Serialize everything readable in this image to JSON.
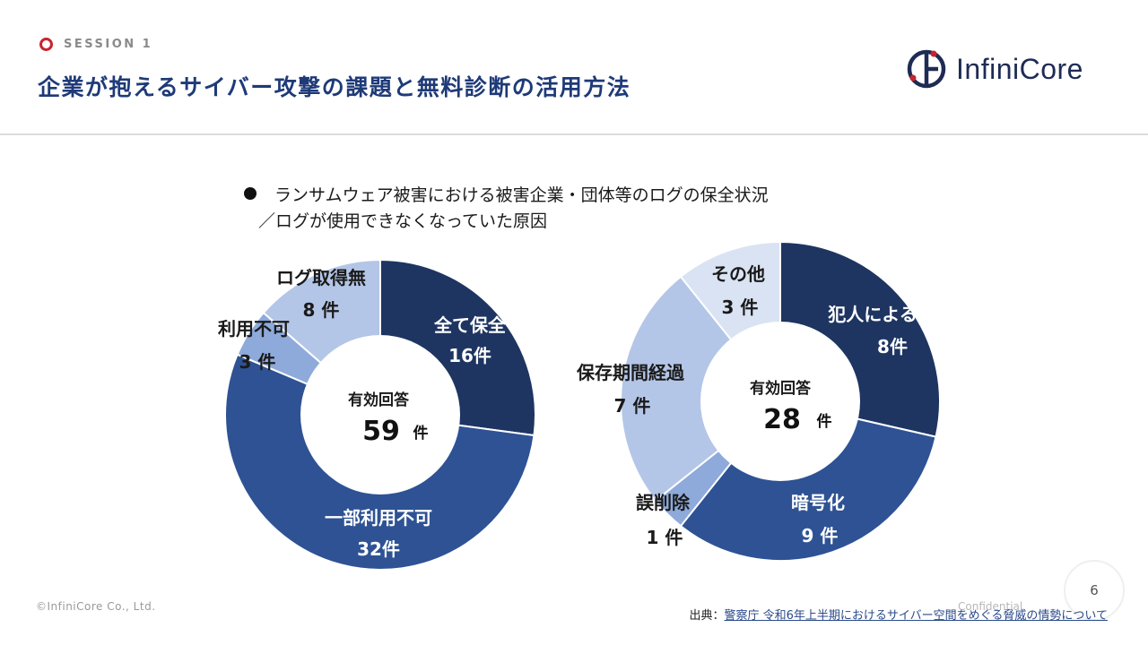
{
  "header": {
    "session_label": "SESSION 1",
    "title": "企業が抱えるサイバー攻撃の課題と無料診断の活用方法",
    "logo_text": "InfiniCore"
  },
  "subtitle": {
    "line1": "ランサムウェア被害における被害企業・団体等のログの保全状況",
    "line2": "／ログが使用できなくなっていた原因"
  },
  "chart_data": [
    {
      "type": "pie",
      "style": "donut",
      "center_caption": "有効回答",
      "total": 59,
      "unit": "件",
      "slices": [
        {
          "label": "全て保全",
          "value": 16,
          "value_text": "16件",
          "color": "#1e3562"
        },
        {
          "label": "一部利用不可",
          "value": 32,
          "value_text": "32件",
          "color": "#2e5294"
        },
        {
          "label": "利用不可",
          "value": 3,
          "value_text": "3 件",
          "color": "#8eaadb"
        },
        {
          "label": "ログ取得無",
          "value": 8,
          "value_text": "8 件",
          "color": "#b4c6e7"
        }
      ]
    },
    {
      "type": "pie",
      "style": "donut",
      "center_caption": "有効回答",
      "total": 28,
      "unit": "件",
      "slices": [
        {
          "label": "犯人による削除",
          "value": 8,
          "value_text": "8件",
          "color": "#1e3562"
        },
        {
          "label": "暗号化",
          "value": 9,
          "value_text": "9 件",
          "color": "#2e5294"
        },
        {
          "label": "誤削除",
          "value": 1,
          "value_text": "1 件",
          "color": "#8eaadb"
        },
        {
          "label": "保存期間経過",
          "value": 7,
          "value_text": "7 件",
          "color": "#b4c6e7"
        },
        {
          "label": "その他",
          "value": 3,
          "value_text": "3 件",
          "color": "#dae3f3"
        }
      ]
    }
  ],
  "footer": {
    "copyright": "©InfiniCore Co., Ltd.",
    "confidential": "Confidential",
    "page_number": "6",
    "source_prefix": "出典：",
    "source_link": "警察庁 令和6年上半期におけるサイバー空間をめぐる脅威の情勢について"
  }
}
